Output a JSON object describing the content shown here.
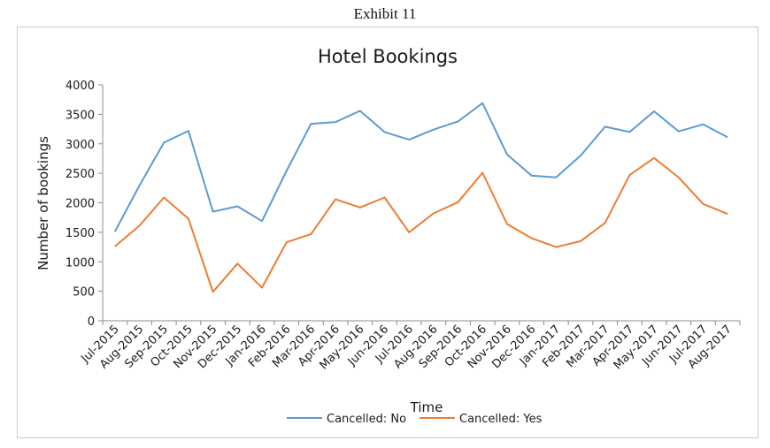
{
  "header": {
    "exhibit_label": "Exhibit 11"
  },
  "chart_data": {
    "type": "line",
    "title": "Hotel Bookings",
    "xlabel": "Time",
    "ylabel": "Number of bookings",
    "ylim": [
      0,
      4000
    ],
    "yticks": [
      0,
      500,
      1000,
      1500,
      2000,
      2500,
      3000,
      3500,
      4000
    ],
    "grid": false,
    "legend_position": "bottom",
    "categories": [
      "Jul-2015",
      "Aug-2015",
      "Sep-2015",
      "Oct-2015",
      "Nov-2015",
      "Dec-2015",
      "Jan-2016",
      "Feb-2016",
      "Mar-2016",
      "Apr-2016",
      "May-2016",
      "Jun-2016",
      "Jul-2016",
      "Aug-2016",
      "Sep-2016",
      "Oct-2016",
      "Nov-2016",
      "Dec-2016",
      "Jan-2017",
      "Feb-2017",
      "Mar-2017",
      "Apr-2017",
      "May-2017",
      "Jun-2017",
      "Jul-2017",
      "Aug-2017"
    ],
    "series": [
      {
        "name": "Cancelled: No",
        "color": "#5b9bd5",
        "values": [
          1510,
          2290,
          3020,
          3220,
          1850,
          1940,
          1690,
          2540,
          3340,
          3370,
          3560,
          3200,
          3070,
          3240,
          3380,
          3690,
          2820,
          2460,
          2430,
          2800,
          3290,
          3200,
          3550,
          3210,
          3330,
          3110
        ]
      },
      {
        "name": "Cancelled: Yes",
        "color": "#ed7d31",
        "values": [
          1260,
          1610,
          2090,
          1730,
          490,
          970,
          560,
          1330,
          1470,
          2060,
          1920,
          2090,
          1500,
          1820,
          2010,
          2510,
          1640,
          1400,
          1250,
          1350,
          1660,
          2470,
          2760,
          2430,
          1980,
          1810
        ]
      }
    ]
  }
}
